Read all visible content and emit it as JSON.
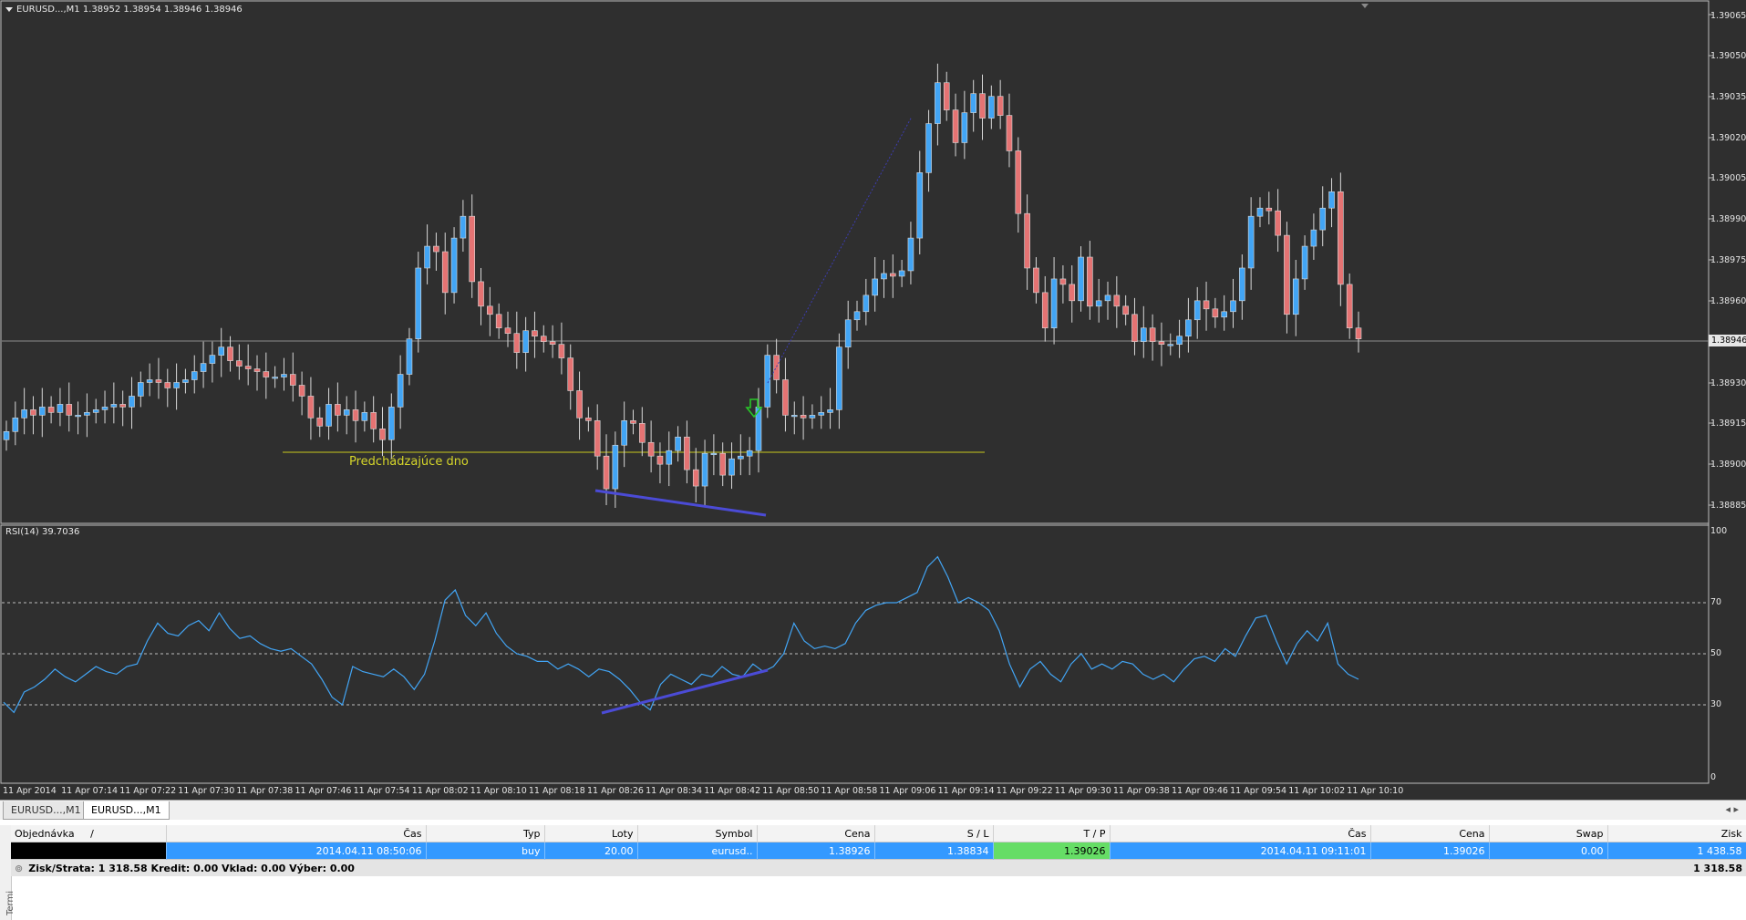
{
  "chart": {
    "title": "EURUSD...,M1  1.38952 1.38954 1.38946 1.38946",
    "current_price": "1.38946",
    "annotation": "Predchádzajúce dno",
    "price_labels": [
      "1.39065",
      "1.39050",
      "1.39035",
      "1.39020",
      "1.39005",
      "1.38990",
      "1.38975",
      "1.38960",
      "1.38930",
      "1.38915",
      "1.38900",
      "1.38885"
    ],
    "rsi_title": "RSI(14) 39.7036",
    "rsi_labels": [
      "100",
      "70",
      "50",
      "30",
      "0"
    ],
    "time_labels": [
      "11 Apr 2014",
      "11 Apr 07:14",
      "11 Apr 07:22",
      "11 Apr 07:30",
      "11 Apr 07:38",
      "11 Apr 07:46",
      "11 Apr 07:54",
      "11 Apr 08:02",
      "11 Apr 08:10",
      "11 Apr 08:18",
      "11 Apr 08:26",
      "11 Apr 08:34",
      "11 Apr 08:42",
      "11 Apr 08:50",
      "11 Apr 08:58",
      "11 Apr 09:06",
      "11 Apr 09:14",
      "11 Apr 09:22",
      "11 Apr 09:30",
      "11 Apr 09:38",
      "11 Apr 09:46",
      "11 Apr 09:54",
      "11 Apr 10:02",
      "11 Apr 10:10"
    ],
    "colors": {
      "background": "#2f2f2f",
      "bull": "#42a5f5",
      "bear": "#e57373",
      "rsi": "#42a5f5",
      "trend": "#4b4bd6",
      "level": "#c8c81e"
    }
  },
  "tabs": [
    {
      "label": "EURUSD...,M1",
      "active": false
    },
    {
      "label": "EURUSD...,M1",
      "active": true
    }
  ],
  "tab_arrows": "◂ ▸",
  "terminal": {
    "side_label": "Termi",
    "columns": [
      "Objednávka",
      "Čas",
      "Typ",
      "Loty",
      "Symbol",
      "Cena",
      "S / L",
      "T / P",
      "Čas",
      "Cena",
      "Swap",
      "Zisk"
    ],
    "sort_indicator": "/",
    "order": {
      "time": "2014.04.11 08:50:06",
      "type": "buy",
      "lots": "20.00",
      "symbol": "eurusd..",
      "price": "1.38926",
      "sl": "1.38834",
      "tp": "1.39026",
      "close_time": "2014.04.11 09:11:01",
      "close_price": "1.39026",
      "swap": "0.00",
      "profit": "1 438.58"
    },
    "summary": {
      "text": "Zisk/Strata: 1 318.58  Kredit: 0.00  Vklad: 0.00  Výber: 0.00",
      "total": "1 318.58"
    }
  }
}
